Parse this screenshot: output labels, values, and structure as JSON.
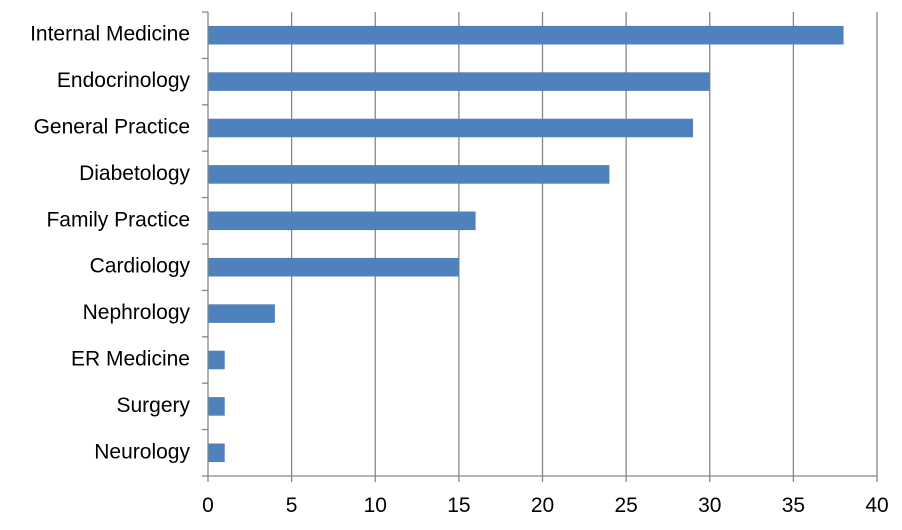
{
  "chart_data": {
    "type": "bar",
    "orientation": "horizontal",
    "categories": [
      "Internal Medicine",
      "Endocrinology",
      "General Practice",
      "Diabetology",
      "Family Practice",
      "Cardiology",
      "Nephrology",
      "ER Medicine",
      "Surgery",
      "Neurology"
    ],
    "values": [
      38,
      30,
      29,
      24,
      16,
      15,
      4,
      1,
      1,
      1
    ],
    "title": "",
    "xlabel": "",
    "ylabel": "",
    "xlim": [
      0,
      40
    ],
    "x_ticks": [
      0,
      5,
      10,
      15,
      20,
      25,
      30,
      35,
      40
    ],
    "x_tick_labels": [
      "0",
      "5",
      "10",
      "15",
      "20",
      "25",
      "30",
      "35",
      "40"
    ],
    "grid": "vertical",
    "legend": "none",
    "bar_color": "#4F81BD"
  }
}
